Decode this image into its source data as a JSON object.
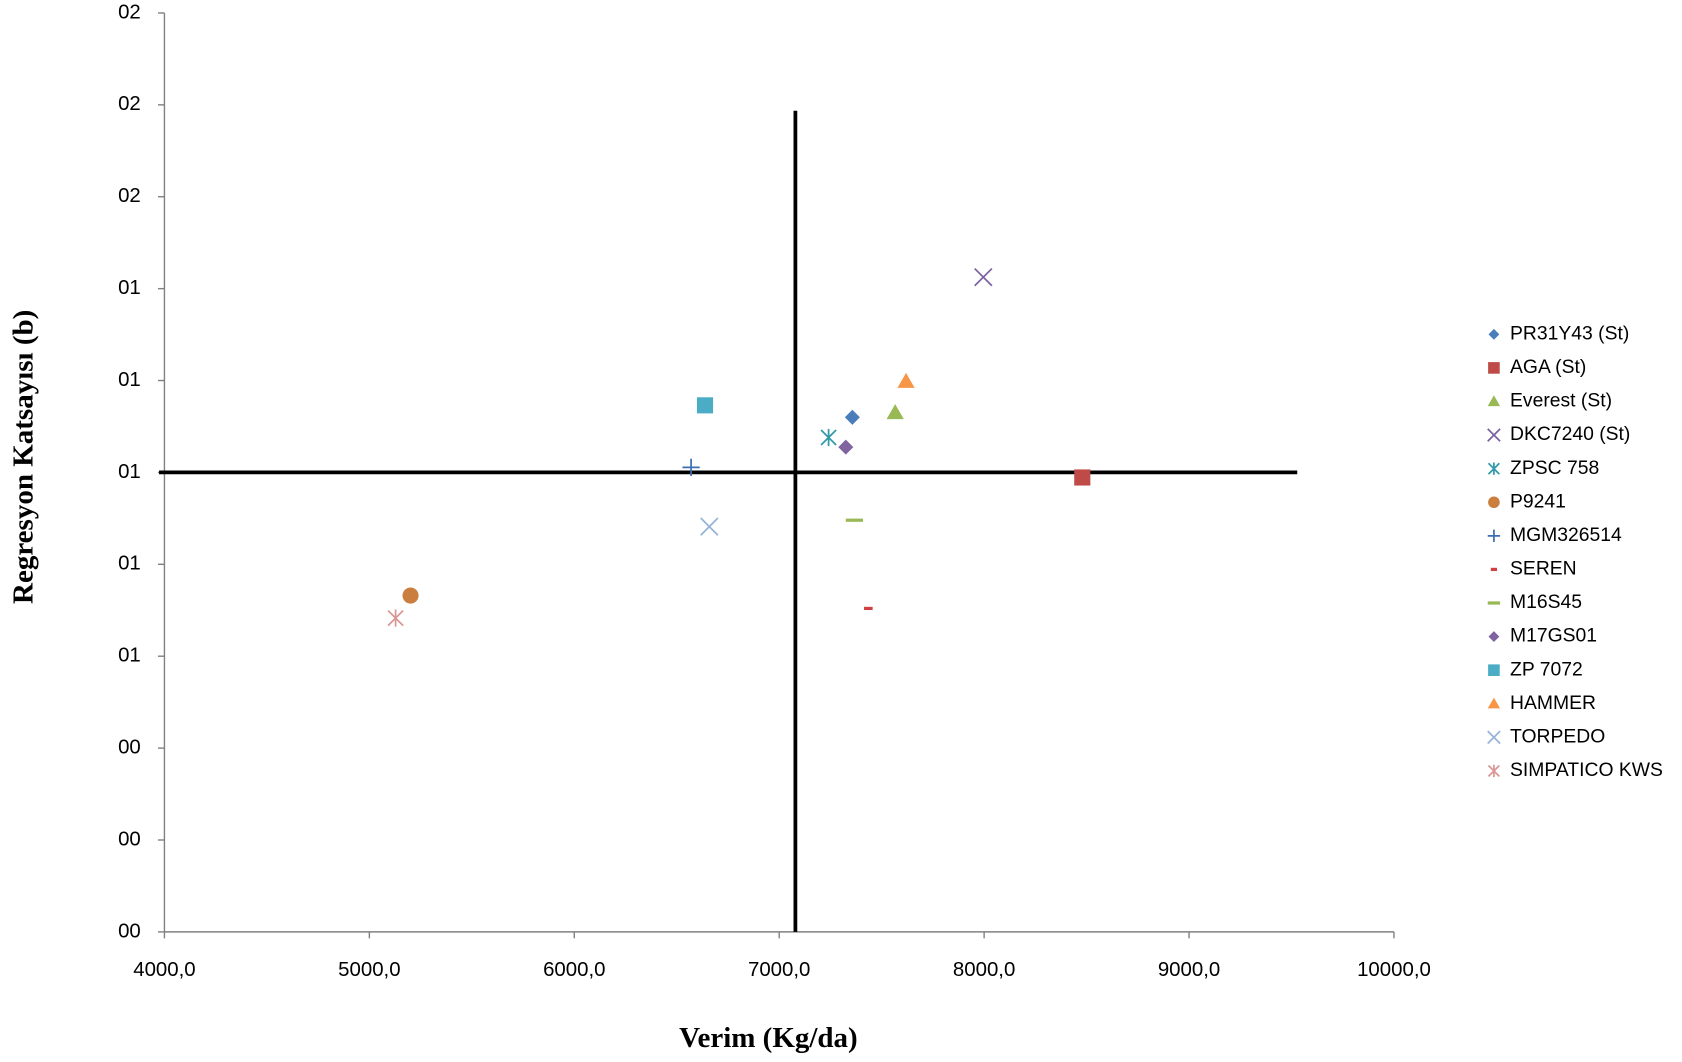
{
  "chart_data": {
    "type": "scatter",
    "x_label": "Verim (Kg/da)",
    "y_label": "Regresyon Katsayısı (b)",
    "xlim": [
      4000,
      10000
    ],
    "ylim": [
      0,
      2.0
    ],
    "xticks": [
      {
        "value": 4000,
        "label": "4000,0"
      },
      {
        "value": 5000,
        "label": "5000,0"
      },
      {
        "value": 6000,
        "label": "6000,0"
      },
      {
        "value": 7000,
        "label": "7000,0"
      },
      {
        "value": 8000,
        "label": "8000,0"
      },
      {
        "value": 9000,
        "label": "9000,0"
      },
      {
        "value": 10000,
        "label": "10000,0"
      }
    ],
    "yticks": [
      {
        "value": 0,
        "label": "00"
      },
      {
        "value": 0.2,
        "label": "00"
      },
      {
        "value": 0.4,
        "label": "00"
      },
      {
        "value": 0.6,
        "label": "01"
      },
      {
        "value": 0.8,
        "label": "01"
      },
      {
        "value": 1.0,
        "label": "01"
      },
      {
        "value": 1.2,
        "label": "01"
      },
      {
        "value": 1.4,
        "label": "01"
      },
      {
        "value": 1.6,
        "label": "02"
      },
      {
        "value": 1.8,
        "label": "02"
      },
      {
        "value": 2.0,
        "label": "02"
      }
    ],
    "reference_lines": {
      "x": 7079,
      "y": 1.0
    },
    "legend": "right",
    "series": [
      {
        "name": "PR31Y43 (St)",
        "color": "#4a7ebb",
        "marker": "diamond",
        "x": [
          7357
        ],
        "values": [
          1.12
        ]
      },
      {
        "name": "AGA (St)",
        "color": "#be4b48",
        "marker": "square",
        "x": [
          8479
        ],
        "values": [
          0.989
        ]
      },
      {
        "name": "Everest (St)",
        "color": "#98b954",
        "marker": "triangle",
        "x": [
          7566
        ],
        "values": [
          1.13
        ]
      },
      {
        "name": "DKC7240 (St)",
        "color": "#7d60a0",
        "marker": "x",
        "x": [
          7996
        ],
        "values": [
          1.425
        ]
      },
      {
        "name": "ZPSC 758",
        "color": "#2f9aa8",
        "marker": "asterisk",
        "x": [
          7241
        ],
        "values": [
          1.076
        ]
      },
      {
        "name": "P9241",
        "color": "#cb7f3f",
        "marker": "circle",
        "x": [
          5201
        ],
        "values": [
          0.732
        ]
      },
      {
        "name": "MGM326514",
        "color": "#3a6fb0",
        "marker": "plus",
        "x": [
          6570
        ],
        "values": [
          1.011
        ]
      },
      {
        "name": "SEREN",
        "color": "#d04040",
        "marker": "dash",
        "x": [
          7435
        ],
        "values": [
          0.704
        ]
      },
      {
        "name": "M16S45",
        "color": "#98b954",
        "marker": "long-dash",
        "x": [
          7367
        ],
        "values": [
          0.896
        ]
      },
      {
        "name": "M17GS01",
        "color": "#8064a2",
        "marker": "diamond",
        "x": [
          7325
        ],
        "values": [
          1.055
        ]
      },
      {
        "name": "ZP 7072",
        "color": "#4bacc6",
        "marker": "square",
        "x": [
          6638
        ],
        "values": [
          1.146
        ]
      },
      {
        "name": "HAMMER",
        "color": "#f79646",
        "marker": "triangle",
        "x": [
          7619
        ],
        "values": [
          1.198
        ]
      },
      {
        "name": "TORPEDO",
        "color": "#95b3d7",
        "marker": "x",
        "x": [
          6659
        ],
        "values": [
          0.882
        ]
      },
      {
        "name": "SIMPATICO KWS",
        "color": "#d99694",
        "marker": "asterisk",
        "x": [
          5128
        ],
        "values": [
          0.683
        ]
      }
    ]
  }
}
